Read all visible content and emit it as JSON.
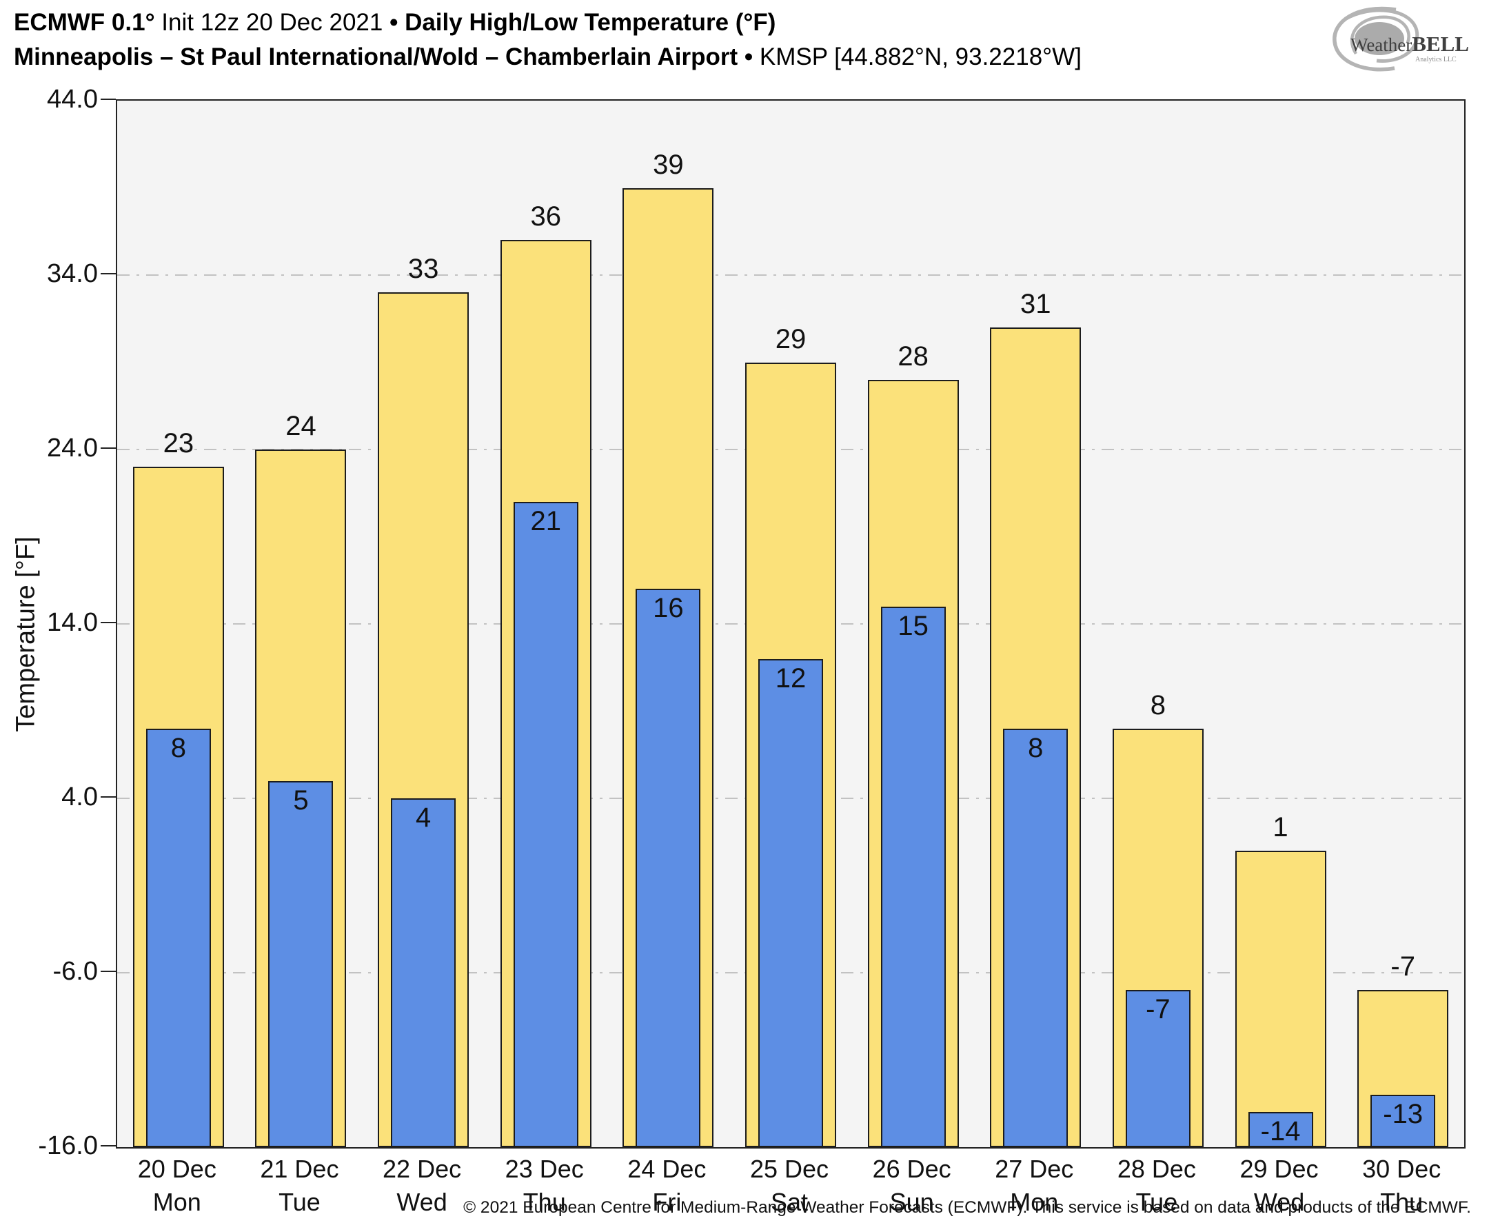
{
  "header": {
    "title_bold_1": "ECMWF 0.1°",
    "title_regular_1": " Init 12z 20 Dec 2021 ",
    "separator": "•",
    "title_bold_2": " Daily High/Low Temperature (°F)",
    "subtitle_bold": "Minneapolis – St Paul International/Wold – Chamberlain Airport ",
    "subtitle_regular": " KMSP [44.882°N, 93.2218°W]"
  },
  "logo": {
    "brand_weather": "Weather",
    "brand_bell": "BELL",
    "brand_sub": "Analytics LLC"
  },
  "chart_data": {
    "type": "bar",
    "title": "ECMWF 0.1° Init 12z 20 Dec 2021 • Daily High/Low Temperature (°F)",
    "subtitle": "Minneapolis – St Paul International/Wold – Chamberlain Airport • KMSP [44.882°N, 93.2218°W]",
    "categories": [
      {
        "date": "20 Dec",
        "weekday": "Mon"
      },
      {
        "date": "21 Dec",
        "weekday": "Tue"
      },
      {
        "date": "22 Dec",
        "weekday": "Wed"
      },
      {
        "date": "23 Dec",
        "weekday": "Thu"
      },
      {
        "date": "24 Dec",
        "weekday": "Fri"
      },
      {
        "date": "25 Dec",
        "weekday": "Sat"
      },
      {
        "date": "26 Dec",
        "weekday": "Sun"
      },
      {
        "date": "27 Dec",
        "weekday": "Mon"
      },
      {
        "date": "28 Dec",
        "weekday": "Tue"
      },
      {
        "date": "29 Dec",
        "weekday": "Wed"
      },
      {
        "date": "30 Dec",
        "weekday": "Thu"
      }
    ],
    "series": [
      {
        "name": "Daily High",
        "color": "#fbe17a",
        "values": [
          23,
          24,
          33,
          36,
          39,
          29,
          28,
          31,
          8,
          1,
          -7
        ]
      },
      {
        "name": "Daily Low",
        "color": "#5d8ee4",
        "values": [
          8,
          5,
          4,
          21,
          16,
          12,
          15,
          8,
          -7,
          -14,
          -13
        ]
      }
    ],
    "ylabel": "Temperature [°F]",
    "xlabel": "",
    "ylim": [
      -16,
      44
    ],
    "yticks": [
      44,
      34,
      24,
      14,
      4,
      -6,
      -16
    ],
    "ytick_labels": [
      "44.0",
      "34.0",
      "24.0",
      "14.0",
      "4.0",
      "-6.0",
      "-16.0"
    ],
    "grid": "horizontal-dashed",
    "legend_position": "none",
    "bar_outline_color": "#1c1c1c",
    "plot_background": "#f4f4f4"
  },
  "footer": {
    "copyright": "© 2021 European Centre for Medium-Range Weather Forecasts (ECMWF). This service is based on data and products of the ECMWF."
  }
}
